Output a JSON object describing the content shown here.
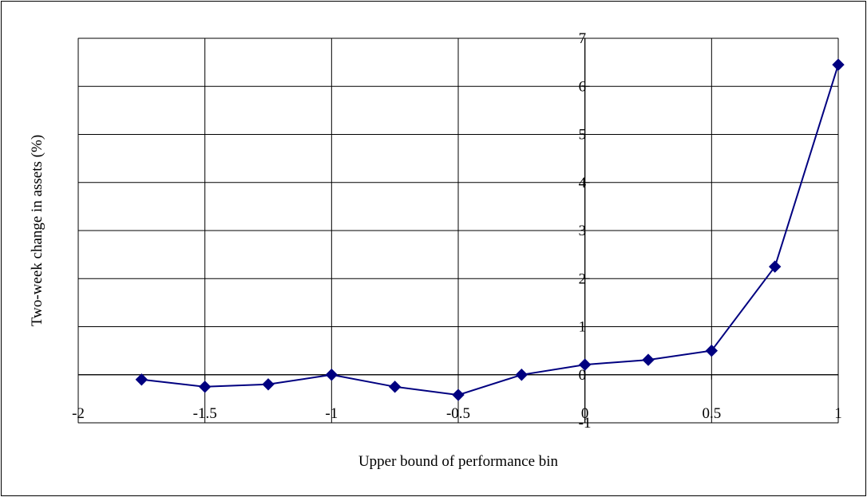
{
  "chart_data": {
    "type": "line",
    "title": "",
    "xlabel": "Upper bound of performance bin",
    "ylabel": "Two-week change in assets (%)",
    "xlim": [
      -2,
      1
    ],
    "ylim": [
      -1,
      7
    ],
    "x_ticks": [
      -2,
      -1.5,
      -1,
      -0.5,
      0,
      0.5,
      1
    ],
    "x_tick_labels": [
      "-2",
      "-1.5",
      "-1",
      "-0.5",
      "0",
      "0.5",
      "1"
    ],
    "y_ticks": [
      -1,
      0,
      1,
      2,
      3,
      4,
      5,
      6,
      7
    ],
    "y_tick_labels": [
      "-1",
      "0",
      "1",
      "2",
      "3",
      "4",
      "5",
      "6",
      "7"
    ],
    "grid": true,
    "legend": "none",
    "series": [
      {
        "color": "#000080",
        "marker": "diamond",
        "x": [
          -1.75,
          -1.5,
          -1.25,
          -1,
          -0.75,
          -0.5,
          -0.25,
          0,
          0.25,
          0.5,
          0.75,
          1
        ],
        "y": [
          -0.1,
          -0.25,
          -0.2,
          0.0,
          -0.25,
          -0.42,
          0.0,
          0.21,
          0.31,
          0.5,
          2.25,
          6.45
        ]
      }
    ]
  }
}
